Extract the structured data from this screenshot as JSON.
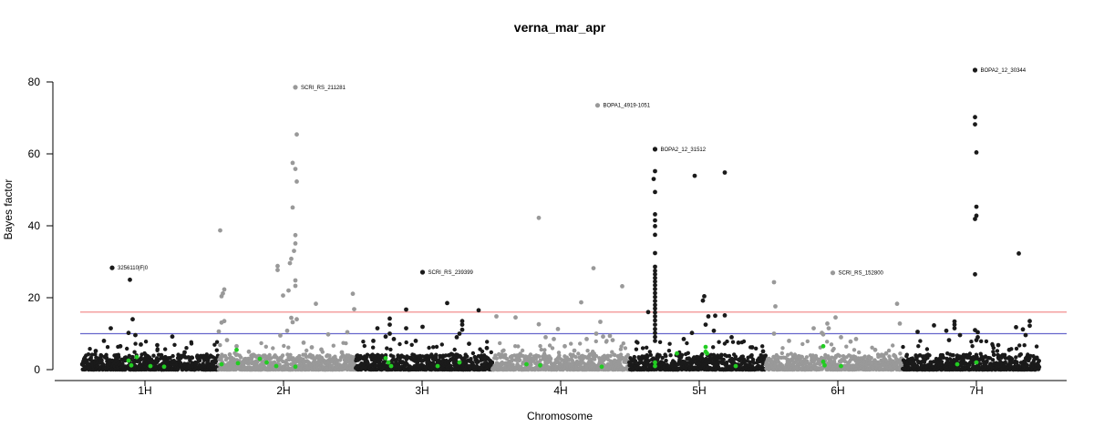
{
  "chart_data": {
    "type": "scatter",
    "title": "verna_mar_apr",
    "xlabel": "Chromosome",
    "ylabel": "Bayes factor",
    "ylim": [
      0,
      80
    ],
    "yticks": [
      0,
      20,
      40,
      60,
      80
    ],
    "grid": false,
    "legend": "none",
    "chromosomes": [
      {
        "label": "1H",
        "start": 0.5,
        "end": 1.5,
        "color": "#1a1a1a"
      },
      {
        "label": "2H",
        "start": 1.5,
        "end": 2.5,
        "color": "#999999"
      },
      {
        "label": "3H",
        "start": 2.5,
        "end": 3.5,
        "color": "#1a1a1a"
      },
      {
        "label": "4H",
        "start": 3.5,
        "end": 4.5,
        "color": "#999999"
      },
      {
        "label": "5H",
        "start": 4.5,
        "end": 5.5,
        "color": "#1a1a1a"
      },
      {
        "label": "6H",
        "start": 5.5,
        "end": 6.5,
        "color": "#999999"
      },
      {
        "label": "7H",
        "start": 6.5,
        "end": 7.5,
        "color": "#1a1a1a"
      }
    ],
    "thresholds": [
      {
        "value": 16,
        "color": "#f08080"
      },
      {
        "value": 10,
        "color": "#6666cc"
      }
    ],
    "highlight_color": "#22cc22",
    "annotations": [
      {
        "label": "3256110|F|0",
        "x": 0.72,
        "y": 28.3
      },
      {
        "label": "SCRI_RS_211281",
        "x": 2.06,
        "y": 78.5
      },
      {
        "label": "SCRI_RS_239399",
        "x": 2.99,
        "y": 27.1
      },
      {
        "label": "BOPA1_4919-1051",
        "x": 4.27,
        "y": 73.5
      },
      {
        "label": "BOPA2_12_31512",
        "x": 4.69,
        "y": 61.3
      },
      {
        "label": "SCRI_RS_152800",
        "x": 5.99,
        "y": 26.9
      },
      {
        "label": "BOPA2_12_30344",
        "x": 7.03,
        "y": 83.3
      }
    ],
    "points": [
      [
        0.72,
        28.3
      ],
      [
        0.85,
        25.0
      ],
      [
        0.87,
        14.0
      ],
      [
        0.71,
        11.5
      ],
      [
        0.84,
        10.2
      ],
      [
        0.89,
        9.6
      ],
      [
        0.66,
        8.0
      ],
      [
        0.93,
        7.0
      ],
      [
        0.78,
        6.5
      ],
      [
        0.6,
        5.2
      ],
      [
        1.05,
        6.8
      ],
      [
        1.16,
        9.2
      ],
      [
        1.25,
        4.8
      ],
      [
        1.08,
        4.0
      ],
      [
        0.97,
        3.5
      ],
      [
        1.35,
        3.2
      ],
      [
        1.42,
        2.5
      ],
      [
        1.51,
        38.7
      ],
      [
        1.54,
        22.3
      ],
      [
        1.53,
        21.2
      ],
      [
        1.52,
        20.4
      ],
      [
        1.54,
        13.5
      ],
      [
        1.52,
        13.1
      ],
      [
        1.5,
        10.6
      ],
      [
        1.56,
        8.2
      ],
      [
        1.63,
        6.5
      ],
      [
        1.72,
        5.0
      ],
      [
        1.58,
        4.2
      ],
      [
        1.93,
        28.8
      ],
      [
        1.93,
        27.7
      ],
      [
        2.04,
        57.5
      ],
      [
        2.06,
        55.8
      ],
      [
        2.07,
        52.3
      ],
      [
        2.04,
        45.1
      ],
      [
        2.06,
        37.4
      ],
      [
        2.06,
        35.1
      ],
      [
        2.05,
        33.0
      ],
      [
        2.03,
        30.8
      ],
      [
        2.02,
        29.6
      ],
      [
        2.06,
        24.8
      ],
      [
        2.06,
        23.3
      ],
      [
        2.01,
        22.0
      ],
      [
        1.97,
        20.6
      ],
      [
        2.07,
        65.4
      ],
      [
        2.03,
        14.4
      ],
      [
        2.07,
        14.0
      ],
      [
        2.04,
        13.2
      ],
      [
        2.21,
        18.3
      ],
      [
        2.0,
        10.8
      ],
      [
        1.95,
        9.5
      ],
      [
        2.3,
        9.8
      ],
      [
        2.12,
        7.5
      ],
      [
        2.18,
        6.2
      ],
      [
        2.25,
        5.6
      ],
      [
        2.4,
        4.8
      ],
      [
        2.48,
        21.1
      ],
      [
        2.49,
        16.8
      ],
      [
        2.44,
        10.4
      ],
      [
        2.63,
        8.0
      ],
      [
        2.66,
        11.5
      ],
      [
        2.75,
        14.2
      ],
      [
        2.75,
        12.5
      ],
      [
        2.75,
        10.0
      ],
      [
        2.72,
        9.2
      ],
      [
        2.78,
        8.5
      ],
      [
        2.87,
        16.7
      ],
      [
        2.87,
        11.5
      ],
      [
        2.99,
        11.9
      ],
      [
        2.94,
        8.0
      ],
      [
        3.17,
        18.5
      ],
      [
        3.28,
        13.5
      ],
      [
        3.28,
        12.5
      ],
      [
        3.28,
        11.1
      ],
      [
        3.26,
        10.0
      ],
      [
        3.24,
        9.0
      ],
      [
        3.4,
        16.5
      ],
      [
        3.53,
        14.8
      ],
      [
        3.33,
        7.2
      ],
      [
        3.46,
        6.0
      ],
      [
        3.67,
        14.5
      ],
      [
        3.84,
        42.2
      ],
      [
        3.84,
        12.6
      ],
      [
        3.89,
        9.0
      ],
      [
        3.95,
        8.5
      ],
      [
        3.98,
        11.3
      ],
      [
        4.15,
        18.7
      ],
      [
        4.19,
        8.5
      ],
      [
        4.24,
        28.2
      ],
      [
        4.29,
        13.3
      ],
      [
        4.26,
        10.0
      ],
      [
        4.31,
        9.2
      ],
      [
        4.36,
        9.4
      ],
      [
        4.38,
        8.2
      ],
      [
        4.45,
        23.2
      ],
      [
        4.03,
        6.5
      ],
      [
        4.1,
        5.3
      ],
      [
        4.64,
        16.0
      ],
      [
        4.69,
        55.2
      ],
      [
        4.68,
        53.0
      ],
      [
        4.69,
        49.4
      ],
      [
        4.69,
        43.2
      ],
      [
        4.69,
        41.5
      ],
      [
        4.69,
        39.9
      ],
      [
        4.69,
        37.5
      ],
      [
        4.69,
        32.4
      ],
      [
        4.69,
        28.6
      ],
      [
        4.69,
        27.5
      ],
      [
        4.69,
        26.5
      ],
      [
        4.69,
        25.5
      ],
      [
        4.69,
        24.5
      ],
      [
        4.69,
        23.5
      ],
      [
        4.69,
        22.4
      ],
      [
        4.69,
        21.3
      ],
      [
        4.69,
        20.2
      ],
      [
        4.69,
        19.1
      ],
      [
        4.69,
        18.0
      ],
      [
        4.69,
        17.0
      ],
      [
        4.69,
        15.9
      ],
      [
        4.69,
        14.8
      ],
      [
        4.69,
        13.7
      ],
      [
        4.69,
        12.5
      ],
      [
        4.69,
        11.3
      ],
      [
        4.69,
        10.2
      ],
      [
        4.69,
        9.1
      ],
      [
        4.69,
        8.0
      ],
      [
        4.98,
        53.9
      ],
      [
        5.2,
        54.8
      ],
      [
        5.05,
        20.4
      ],
      [
        5.04,
        19.2
      ],
      [
        5.13,
        15.0
      ],
      [
        5.2,
        15.1
      ],
      [
        5.08,
        14.8
      ],
      [
        5.06,
        12.5
      ],
      [
        5.12,
        10.8
      ],
      [
        4.96,
        10.2
      ],
      [
        4.9,
        8.5
      ],
      [
        5.25,
        9.0
      ],
      [
        5.3,
        7.5
      ],
      [
        5.4,
        6.2
      ],
      [
        5.48,
        5.1
      ],
      [
        5.56,
        24.3
      ],
      [
        5.57,
        17.6
      ],
      [
        5.56,
        10.0
      ],
      [
        5.67,
        8.0
      ],
      [
        5.85,
        11.5
      ],
      [
        5.91,
        10.2
      ],
      [
        5.96,
        11.5
      ],
      [
        6.01,
        14.5
      ],
      [
        5.95,
        12.8
      ],
      [
        5.92,
        9.8
      ],
      [
        6.05,
        9.0
      ],
      [
        6.12,
        7.8
      ],
      [
        6.16,
        8.5
      ],
      [
        6.46,
        18.3
      ],
      [
        6.3,
        5.5
      ],
      [
        6.38,
        4.5
      ],
      [
        6.48,
        12.8
      ],
      [
        6.61,
        10.5
      ],
      [
        6.73,
        12.3
      ],
      [
        6.82,
        10.8
      ],
      [
        6.88,
        13.4
      ],
      [
        6.88,
        12.5
      ],
      [
        6.88,
        11.5
      ],
      [
        6.92,
        9.6
      ],
      [
        6.84,
        8.2
      ],
      [
        7.03,
        70.2
      ],
      [
        7.03,
        68.2
      ],
      [
        7.04,
        60.4
      ],
      [
        7.04,
        45.3
      ],
      [
        7.04,
        42.8
      ],
      [
        7.03,
        41.9
      ],
      [
        7.03,
        26.5
      ],
      [
        7.03,
        11.0
      ],
      [
        7.05,
        10.4
      ],
      [
        7.05,
        9.0
      ],
      [
        7.04,
        8.2
      ],
      [
        7.35,
        32.3
      ],
      [
        7.33,
        11.8
      ],
      [
        7.38,
        11.2
      ],
      [
        7.43,
        13.5
      ],
      [
        7.43,
        12.2
      ],
      [
        7.4,
        9.6
      ],
      [
        7.2,
        6.8
      ],
      [
        7.28,
        5.5
      ]
    ],
    "highlighted_points": [
      [
        0.84,
        2.5
      ],
      [
        0.86,
        1.2
      ],
      [
        0.9,
        3.5
      ],
      [
        1.0,
        1.0
      ],
      [
        1.1,
        0.8
      ],
      [
        1.52,
        1.5
      ],
      [
        1.63,
        5.5
      ],
      [
        1.64,
        1.8
      ],
      [
        1.8,
        3.0
      ],
      [
        1.85,
        2.0
      ],
      [
        1.92,
        1.0
      ],
      [
        2.06,
        0.8
      ],
      [
        2.72,
        3.2
      ],
      [
        2.74,
        2.0
      ],
      [
        2.76,
        1.0
      ],
      [
        3.1,
        1.0
      ],
      [
        3.26,
        2.0
      ],
      [
        3.75,
        1.5
      ],
      [
        3.85,
        1.2
      ],
      [
        4.3,
        0.8
      ],
      [
        4.69,
        2.0
      ],
      [
        4.69,
        1.0
      ],
      [
        4.85,
        4.5
      ],
      [
        5.06,
        6.3
      ],
      [
        5.06,
        5.0
      ],
      [
        5.07,
        4.5
      ],
      [
        5.28,
        1.0
      ],
      [
        5.92,
        6.5
      ],
      [
        5.92,
        2.2
      ],
      [
        5.93,
        1.2
      ],
      [
        6.05,
        1.0
      ],
      [
        6.9,
        1.5
      ],
      [
        7.04,
        2.0
      ]
    ]
  }
}
